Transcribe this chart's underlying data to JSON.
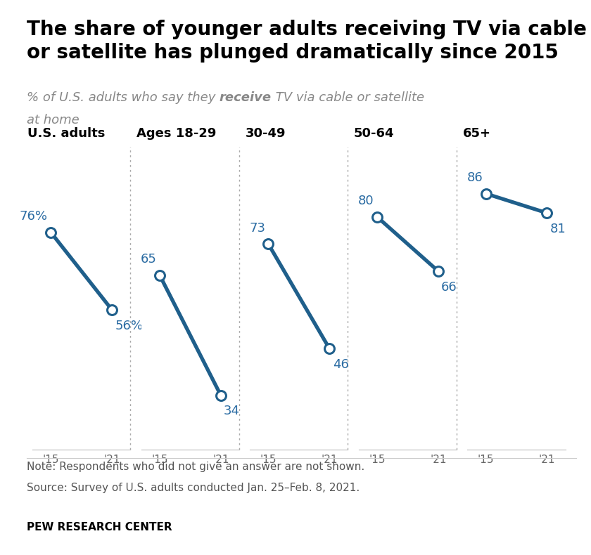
{
  "title": "The share of younger adults receiving TV via cable\nor satellite has plunged dramatically since 2015",
  "categories": [
    "U.S. adults",
    "Ages 18-29",
    "30-49",
    "50-64",
    "65+"
  ],
  "values_2015": [
    76,
    65,
    73,
    80,
    86
  ],
  "values_2021": [
    56,
    34,
    46,
    66,
    81
  ],
  "show_percent": [
    true,
    false,
    false,
    false,
    false
  ],
  "line_color": "#1f5f8b",
  "dot_edge_color": "#1f5f8b",
  "dot_face_color": "#ffffff",
  "background_color": "#ffffff",
  "note_line1": "Note: Respondents who did not give an answer are not shown.",
  "note_line2": "Source: Survey of U.S. adults conducted Jan. 25–Feb. 8, 2021.",
  "footer": "PEW RESEARCH CENTER",
  "ylim": [
    20,
    98
  ],
  "year_labels": [
    "'15",
    "'21"
  ],
  "label_color": "#2b6ca3",
  "subtitle_color": "#888888",
  "note_color": "#555555",
  "title_fontsize": 20,
  "subtitle_fontsize": 13,
  "cat_fontsize": 13,
  "val_fontsize": 13,
  "tick_fontsize": 11,
  "note_fontsize": 11,
  "footer_fontsize": 11
}
